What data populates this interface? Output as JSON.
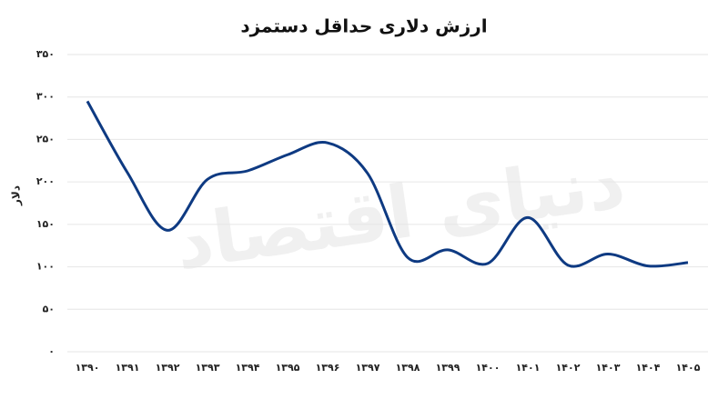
{
  "chart_data": {
    "type": "line",
    "title": "ارزش دلاری حداقل دستمزد",
    "y_label": "دلار",
    "watermark": "دنیای اقتصاد",
    "categories": [
      "۱۳۹۰",
      "۱۳۹۱",
      "۱۳۹۲",
      "۱۳۹۳",
      "۱۳۹۴",
      "۱۳۹۵",
      "۱۳۹۶",
      "۱۳۹۷",
      "۱۳۹۸",
      "۱۳۹۹",
      "۱۴۰۰",
      "۱۴۰۱",
      "۱۴۰۲",
      "۱۴۰۳",
      "۱۴۰۴",
      "۱۴۰۵"
    ],
    "series": [
      {
        "name": "ارزش دلاری",
        "color": "#0e3a82",
        "values": [
          295,
          211,
          143,
          203,
          213,
          232,
          246,
          210,
          111,
          120,
          104,
          158,
          102,
          115,
          101,
          105
        ]
      }
    ],
    "ylim": [
      0,
      350
    ],
    "yticks": [
      {
        "value": 0,
        "label": "۰"
      },
      {
        "value": 50,
        "label": "۵۰"
      },
      {
        "value": 100,
        "label": "۱۰۰"
      },
      {
        "value": 150,
        "label": "۱۵۰"
      },
      {
        "value": 200,
        "label": "۲۰۰"
      },
      {
        "value": 250,
        "label": "۲۵۰"
      },
      {
        "value": 300,
        "label": "۳۰۰"
      },
      {
        "value": 350,
        "label": "۳۵۰"
      }
    ],
    "grid": true
  }
}
